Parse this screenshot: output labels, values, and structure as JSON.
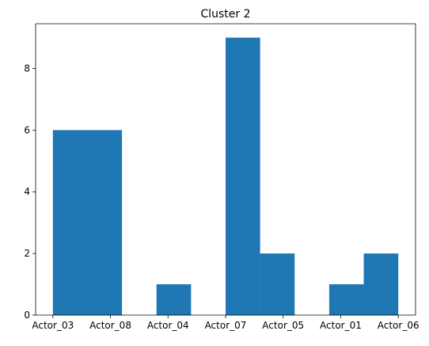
{
  "chart_data": {
    "type": "bar",
    "title": "Cluster 2",
    "xlabel": "",
    "ylabel": "",
    "x_tick_labels": [
      "Actor_03",
      "Actor_08",
      "Actor_04",
      "Actor_07",
      "Actor_05",
      "Actor_01",
      "Actor_06"
    ],
    "y_tick_labels": [
      "0",
      "2",
      "4",
      "6",
      "8"
    ],
    "y_ticks": [
      0,
      2,
      4,
      6,
      8
    ],
    "xlim": [
      -0.3,
      6.3
    ],
    "ylim": [
      0,
      9.45
    ],
    "bins": [
      {
        "start": 0.0,
        "end": 0.6,
        "value": 6
      },
      {
        "start": 0.6,
        "end": 1.2,
        "value": 6
      },
      {
        "start": 1.2,
        "end": 1.8,
        "value": 0
      },
      {
        "start": 1.8,
        "end": 2.4,
        "value": 1
      },
      {
        "start": 2.4,
        "end": 3.0,
        "value": 0
      },
      {
        "start": 3.0,
        "end": 3.6,
        "value": 9
      },
      {
        "start": 3.6,
        "end": 4.2,
        "value": 2
      },
      {
        "start": 4.2,
        "end": 4.8,
        "value": 0
      },
      {
        "start": 4.8,
        "end": 5.4,
        "value": 1
      },
      {
        "start": 5.4,
        "end": 6.0,
        "value": 2
      }
    ],
    "bar_color": "#1f77b4",
    "grid": false,
    "legend": "none"
  }
}
